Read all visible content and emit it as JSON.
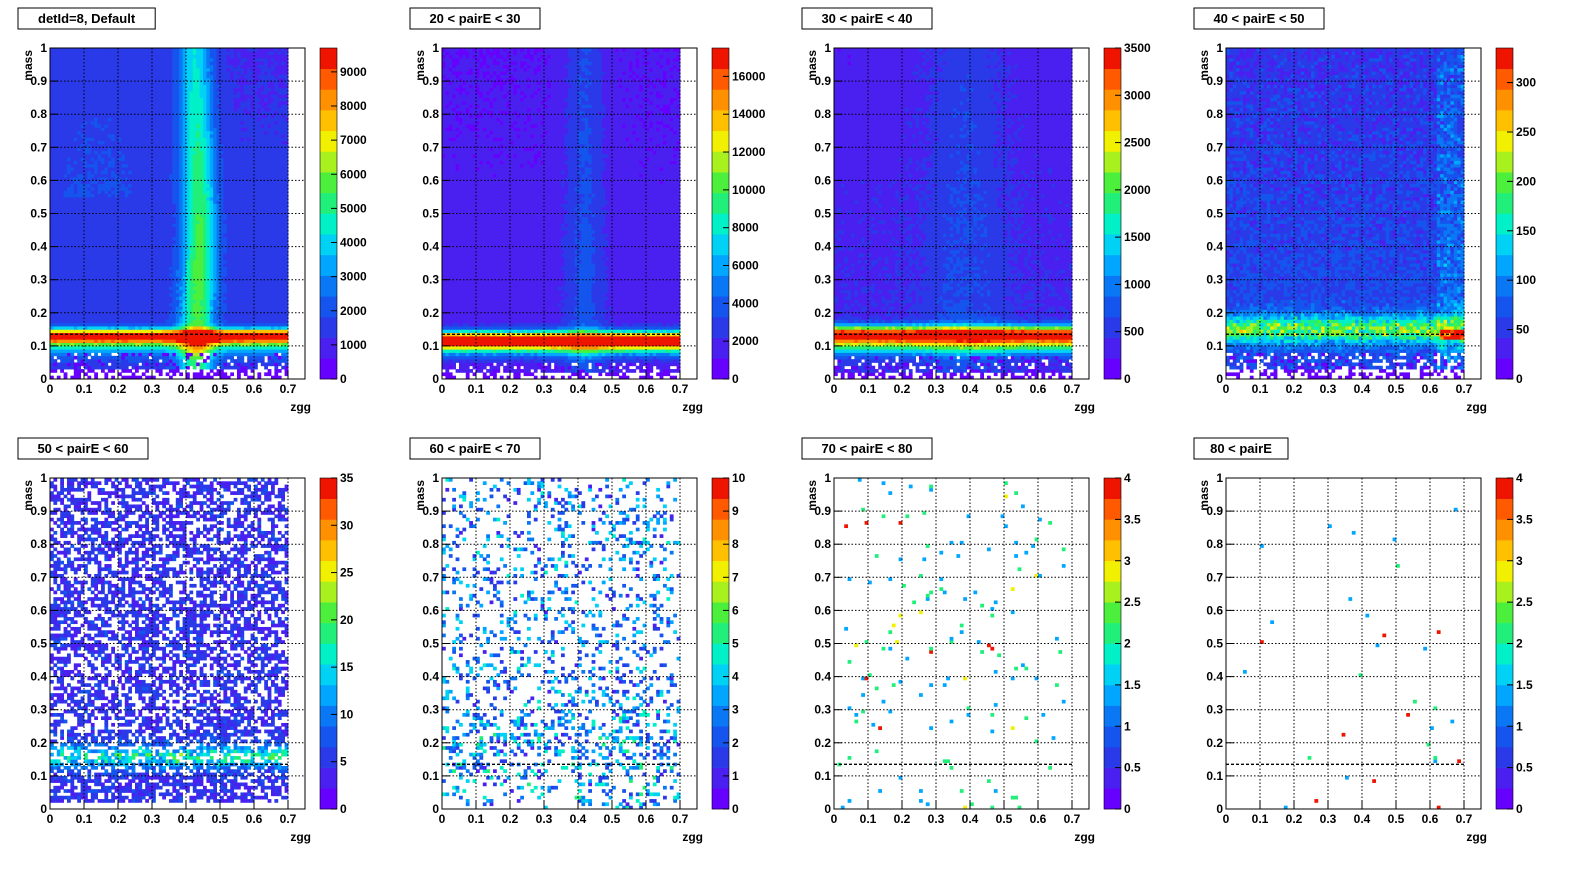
{
  "chart_data": [
    {
      "type": "heatmap",
      "title": "detId=8, Default",
      "xlabel": "zgg",
      "ylabel": "mass",
      "xlim": [
        0,
        0.75
      ],
      "ylim": [
        0,
        1
      ],
      "xticks": [
        "0",
        "0.1",
        "0.2",
        "0.3",
        "0.4",
        "0.5",
        "0.6",
        "0.7"
      ],
      "yticks": [
        "0",
        "0.1",
        "0.2",
        "0.3",
        "0.4",
        "0.5",
        "0.6",
        "0.7",
        "0.8",
        "0.9",
        "1"
      ],
      "colorbar_ticks": [
        "0",
        "1000",
        "2000",
        "3000",
        "4000",
        "5000",
        "6000",
        "7000",
        "8000",
        "9000"
      ],
      "zmax": 9700,
      "pattern": "band_edge",
      "band_mass": [
        0.11,
        0.15
      ],
      "grid": true
    },
    {
      "type": "heatmap",
      "title": "20 < pairE < 30",
      "xlabel": "zgg",
      "ylabel": "mass",
      "xlim": [
        0,
        0.75
      ],
      "ylim": [
        0,
        1
      ],
      "xticks": [
        "0",
        "0.1",
        "0.2",
        "0.3",
        "0.4",
        "0.5",
        "0.6",
        "0.7"
      ],
      "yticks": [
        "0",
        "0.1",
        "0.2",
        "0.3",
        "0.4",
        "0.5",
        "0.6",
        "0.7",
        "0.8",
        "0.9",
        "1"
      ],
      "colorbar_ticks": [
        "0",
        "2000",
        "4000",
        "6000",
        "8000",
        "10000",
        "12000",
        "14000",
        "16000"
      ],
      "zmax": 17500,
      "pattern": "band_low",
      "band_mass": [
        0.09,
        0.15
      ],
      "grid": true
    },
    {
      "type": "heatmap",
      "title": "30 < pairE < 40",
      "xlabel": "zgg",
      "ylabel": "mass",
      "xlim": [
        0,
        0.75
      ],
      "ylim": [
        0,
        1
      ],
      "xticks": [
        "0",
        "0.1",
        "0.2",
        "0.3",
        "0.4",
        "0.5",
        "0.6",
        "0.7"
      ],
      "yticks": [
        "0",
        "0.1",
        "0.2",
        "0.3",
        "0.4",
        "0.5",
        "0.6",
        "0.7",
        "0.8",
        "0.9",
        "1"
      ],
      "colorbar_ticks": [
        "0",
        "500",
        "1000",
        "1500",
        "2000",
        "2500",
        "3000",
        "3500"
      ],
      "zmax": 3500,
      "pattern": "band_mid",
      "band_mass": [
        0.11,
        0.16
      ],
      "grid": true
    },
    {
      "type": "heatmap",
      "title": "40 < pairE < 50",
      "xlabel": "zgg",
      "ylabel": "mass",
      "xlim": [
        0,
        0.75
      ],
      "ylim": [
        0,
        1
      ],
      "xticks": [
        "0",
        "0.1",
        "0.2",
        "0.3",
        "0.4",
        "0.5",
        "0.6",
        "0.7"
      ],
      "yticks": [
        "0",
        "0.1",
        "0.2",
        "0.3",
        "0.4",
        "0.5",
        "0.6",
        "0.7",
        "0.8",
        "0.9",
        "1"
      ],
      "colorbar_ticks": [
        "0",
        "50",
        "100",
        "150",
        "200",
        "250",
        "300"
      ],
      "zmax": 335,
      "pattern": "noisy_band",
      "band_mass": [
        0.11,
        0.2
      ],
      "grid": true
    },
    {
      "type": "heatmap",
      "title": "50 < pairE < 60",
      "xlabel": "zgg",
      "ylabel": "mass",
      "xlim": [
        0,
        0.75
      ],
      "ylim": [
        0,
        1
      ],
      "xticks": [
        "0",
        "0.1",
        "0.2",
        "0.3",
        "0.4",
        "0.5",
        "0.6",
        "0.7"
      ],
      "yticks": [
        "0",
        "0.1",
        "0.2",
        "0.3",
        "0.4",
        "0.5",
        "0.6",
        "0.7",
        "0.8",
        "0.9",
        "1"
      ],
      "colorbar_ticks": [
        "0",
        "5",
        "10",
        "15",
        "20",
        "25",
        "30",
        "35"
      ],
      "zmax": 35,
      "pattern": "sparse_band",
      "band_mass": [
        0.12,
        0.2
      ],
      "grid": true
    },
    {
      "type": "heatmap",
      "title": "60 < pairE < 70",
      "xlabel": "zgg",
      "ylabel": "mass",
      "xlim": [
        0,
        0.75
      ],
      "ylim": [
        0,
        1
      ],
      "xticks": [
        "0",
        "0.1",
        "0.2",
        "0.3",
        "0.4",
        "0.5",
        "0.6",
        "0.7"
      ],
      "yticks": [
        "0",
        "0.1",
        "0.2",
        "0.3",
        "0.4",
        "0.5",
        "0.6",
        "0.7",
        "0.8",
        "0.9",
        "1"
      ],
      "colorbar_ticks": [
        "0",
        "1",
        "2",
        "3",
        "4",
        "5",
        "6",
        "7",
        "8",
        "9",
        "10"
      ],
      "zmax": 10,
      "pattern": "very_sparse",
      "grid": true
    },
    {
      "type": "heatmap",
      "title": "70 < pairE < 80",
      "xlabel": "zgg",
      "ylabel": "mass",
      "xlim": [
        0,
        0.75
      ],
      "ylim": [
        0,
        1
      ],
      "xticks": [
        "0",
        "0.1",
        "0.2",
        "0.3",
        "0.4",
        "0.5",
        "0.6",
        "0.7"
      ],
      "yticks": [
        "0",
        "0.1",
        "0.2",
        "0.3",
        "0.4",
        "0.5",
        "0.6",
        "0.7",
        "0.8",
        "0.9",
        "1"
      ],
      "colorbar_ticks": [
        "0",
        "0.5",
        "1",
        "1.5",
        "2",
        "2.5",
        "3",
        "3.5",
        "4"
      ],
      "zmax": 4,
      "pattern": "scattered",
      "grid": true,
      "dashed_line_mass": 0.135
    },
    {
      "type": "heatmap",
      "title": "80 < pairE",
      "xlabel": "zgg",
      "ylabel": "mass",
      "xlim": [
        0,
        0.75
      ],
      "ylim": [
        0,
        1
      ],
      "xticks": [
        "0",
        "0.1",
        "0.2",
        "0.3",
        "0.4",
        "0.5",
        "0.6",
        "0.7"
      ],
      "yticks": [
        "0",
        "0.1",
        "0.2",
        "0.3",
        "0.4",
        "0.5",
        "0.6",
        "0.7",
        "0.8",
        "0.9",
        "1"
      ],
      "colorbar_ticks": [
        "0",
        "0.5",
        "1",
        "1.5",
        "2",
        "2.5",
        "3",
        "3.5",
        "4"
      ],
      "zmax": 4,
      "pattern": "scattered_few",
      "grid": true,
      "dashed_line_mass": 0.135
    }
  ],
  "palette": [
    "#6600ff",
    "#4a20f0",
    "#2a3ae8",
    "#1555ee",
    "#0a78f5",
    "#00a6ff",
    "#00d2f5",
    "#00f0c8",
    "#20f07a",
    "#4cf03c",
    "#a8f01e",
    "#f0f000",
    "#ffc000",
    "#ff9000",
    "#ff5a00",
    "#ee1400"
  ]
}
